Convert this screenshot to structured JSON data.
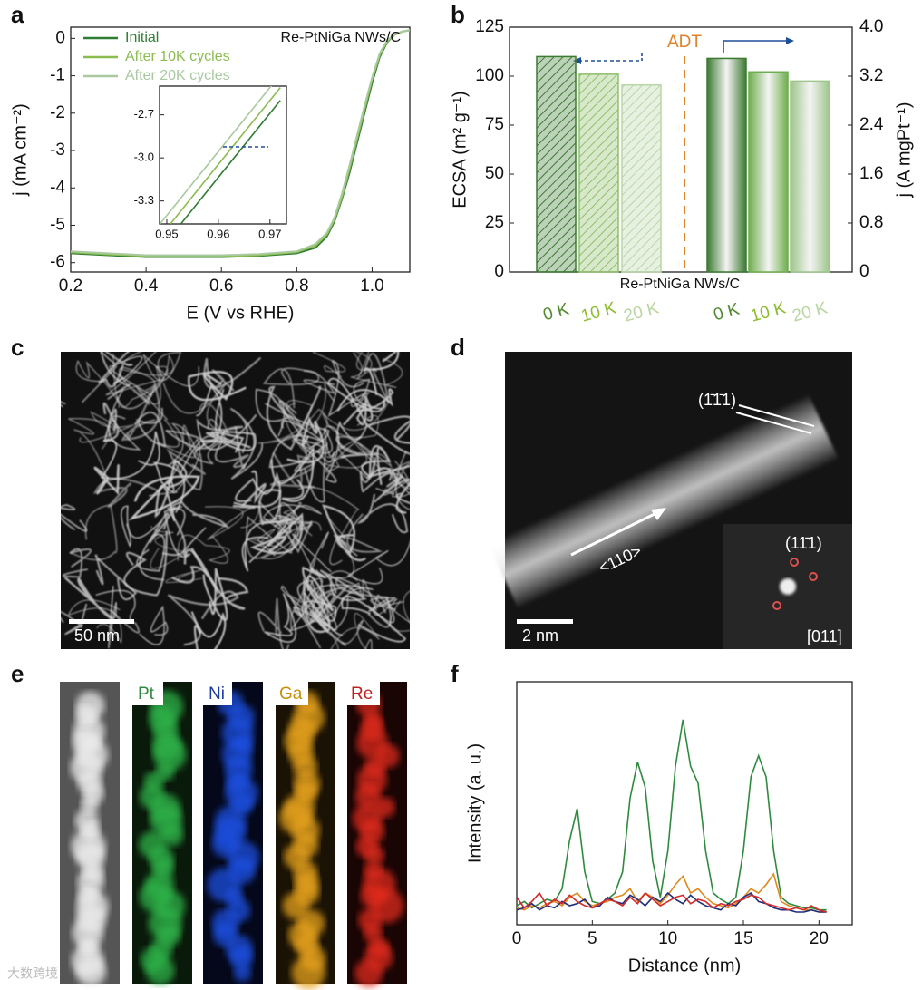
{
  "panels": [
    "a",
    "b",
    "c",
    "d",
    "e",
    "f"
  ],
  "chart_data": [
    {
      "type": "line",
      "annotation": "Re-PtNiGa NWs/C",
      "x_label": "E (V vs RHE)",
      "y_label": "j (mA cm⁻²)",
      "x": [
        0.2,
        0.3,
        0.4,
        0.5,
        0.6,
        0.7,
        0.8,
        0.85,
        0.88,
        0.9,
        0.92,
        0.94,
        0.96,
        0.98,
        1.0,
        1.02,
        1.04,
        1.06,
        1.08,
        1.1
      ],
      "series": [
        {
          "name": "Initial",
          "color": "#2e7d32",
          "values": [
            -5.75,
            -5.8,
            -5.85,
            -5.85,
            -5.85,
            -5.82,
            -5.75,
            -5.6,
            -5.3,
            -4.9,
            -4.3,
            -3.6,
            -2.8,
            -2.0,
            -1.2,
            -0.5,
            -0.1,
            0.1,
            0.18,
            0.22
          ]
        },
        {
          "name": "After 10K cycles",
          "color": "#8bbd4e",
          "values": [
            -5.72,
            -5.78,
            -5.82,
            -5.83,
            -5.83,
            -5.8,
            -5.72,
            -5.55,
            -5.25,
            -4.85,
            -4.25,
            -3.5,
            -2.7,
            -1.9,
            -1.1,
            -0.45,
            -0.08,
            0.1,
            0.18,
            0.22
          ]
        },
        {
          "name": "After 20K cycles",
          "color": "#a9c9a0",
          "values": [
            -5.7,
            -5.75,
            -5.8,
            -5.8,
            -5.8,
            -5.77,
            -5.7,
            -5.5,
            -5.2,
            -4.8,
            -4.15,
            -3.4,
            -2.6,
            -1.8,
            -1.05,
            -0.4,
            -0.05,
            0.11,
            0.18,
            0.22
          ]
        }
      ],
      "xlim": [
        0.2,
        1.1
      ],
      "xticks": [
        0.2,
        0.4,
        0.6,
        0.8,
        {
          "value": 1,
          "label": "1.0"
        }
      ],
      "ylim": [
        -6.25,
        0.3
      ],
      "yticks": [
        0,
        -1,
        -2,
        -3,
        -4,
        -5,
        -6
      ],
      "legend": "upper left"
    },
    {
      "type": "line",
      "x": [
        0.948,
        0.972
      ],
      "series": [
        {
          "color": "#2e7d32",
          "values": [
            -3.67,
            -2.6
          ]
        },
        {
          "color": "#8bbd4e",
          "values": [
            -3.58,
            -2.51
          ]
        },
        {
          "color": "#a9c9a0",
          "values": [
            -3.49,
            -2.42
          ]
        }
      ],
      "xlim": [
        0.9486,
        0.9732
      ],
      "xticks": [
        0.95,
        0.96,
        0.97
      ],
      "ylim": [
        -3.46,
        -2.5
      ],
      "yticks": [
        -2.7,
        {
          "value": -3,
          "label": "-3.0"
        },
        -3.3
      ]
    },
    {
      "type": "bar",
      "categories": [
        "0 K",
        "10 K",
        "20 K",
        "0 K",
        "10 K",
        "20 K"
      ],
      "category_colors": [
        "#4f8a2e",
        "#8bbd2e",
        "#b9d6a0",
        "#4f8a2e",
        "#8bbd2e",
        "#b9d6a0"
      ],
      "annotation": "ADT",
      "x_label": "Re-PtNiGa NWs/C",
      "y_label": "ECSA (m² g⁻¹)",
      "y2_label": "j (A mgPt⁻¹)",
      "series": [
        {
          "colors": [
            "#3d7a32",
            "#8fbf6a",
            "#b9d6a8",
            null,
            null,
            null
          ],
          "values": [
            110,
            101,
            95.5,
            null,
            null,
            null
          ]
        },
        {
          "colors": [
            null,
            null,
            null,
            "#3d7a32",
            "#6fae4e",
            "#9dc58a"
          ],
          "axis": "y2",
          "values": [
            null,
            null,
            null,
            3.49,
            3.27,
            3.12
          ]
        }
      ],
      "ylim": [
        0,
        125
      ],
      "yticks": [
        0,
        25,
        50,
        75,
        100,
        125
      ],
      "y2lim": [
        0,
        4
      ],
      "y2ticks": [
        0,
        0.8,
        1.6,
        2.4,
        3.2,
        {
          "value": 4,
          "label": "4.0"
        }
      ]
    },
    {
      "type": "line",
      "x_label": "Distance (nm)",
      "y_label": "Intensity (a. u.)",
      "x": [
        0,
        0.5,
        1,
        1.5,
        2,
        2.5,
        3,
        3.5,
        4,
        4.5,
        5,
        5.5,
        6,
        6.5,
        7,
        7.5,
        8,
        8.5,
        9,
        9.5,
        10,
        10.5,
        11,
        11.5,
        12,
        12.5,
        13,
        13.5,
        14,
        14.5,
        15,
        15.5,
        16,
        16.5,
        17,
        17.5,
        18,
        18.5,
        19,
        19.5,
        20,
        20.5
      ],
      "series": [
        {
          "color": "#2e8b3e",
          "values": [
            4,
            6,
            3,
            5,
            7,
            6,
            12,
            35,
            50,
            20,
            6,
            5,
            7,
            10,
            20,
            55,
            72,
            60,
            25,
            8,
            30,
            70,
            92,
            70,
            62,
            30,
            10,
            7,
            5,
            8,
            30,
            65,
            75,
            65,
            30,
            8,
            5,
            4,
            3,
            3,
            2,
            2
          ]
        },
        {
          "color": "#e08a1e",
          "values": [
            3,
            2,
            4,
            3,
            5,
            6,
            4,
            8,
            10,
            6,
            4,
            5,
            6,
            8,
            9,
            12,
            6,
            10,
            8,
            5,
            9,
            14,
            18,
            10,
            12,
            8,
            5,
            4,
            3,
            5,
            8,
            12,
            10,
            14,
            19,
            6,
            4,
            3,
            2,
            2,
            1,
            1
          ]
        },
        {
          "color": "#1f2f7a",
          "values": [
            2,
            3,
            5,
            2,
            4,
            3,
            6,
            4,
            5,
            7,
            3,
            4,
            8,
            6,
            5,
            9,
            7,
            4,
            8,
            6,
            10,
            7,
            5,
            9,
            6,
            4,
            3,
            2,
            5,
            4,
            8,
            10,
            6,
            5,
            3,
            2,
            2,
            1,
            1,
            2,
            1,
            1
          ]
        },
        {
          "color": "#d42a2a",
          "values": [
            8,
            3,
            6,
            10,
            4,
            7,
            5,
            9,
            6,
            4,
            3,
            5,
            7,
            6,
            4,
            8,
            5,
            10,
            7,
            4,
            6,
            8,
            9,
            5,
            7,
            6,
            3,
            5,
            4,
            6,
            7,
            9,
            8,
            5,
            4,
            3,
            2,
            3,
            2,
            4,
            2,
            1
          ]
        }
      ],
      "xlim": [
        0,
        22.2
      ],
      "xticks": [
        0,
        5,
        10,
        15,
        20
      ],
      "ylim": [
        -5,
        110
      ]
    }
  ],
  "images": {
    "c": {
      "scale_bar": "50 nm"
    },
    "d": {
      "scale_bar": "2 nm",
      "labels": [
        "(1̄1̄1)",
        "<110>",
        "(11̄1)",
        "[011]"
      ]
    },
    "e": {
      "labels": [
        "Pt",
        "Ni",
        "Ga",
        "Re"
      ]
    }
  },
  "watermark": "大数跨境"
}
